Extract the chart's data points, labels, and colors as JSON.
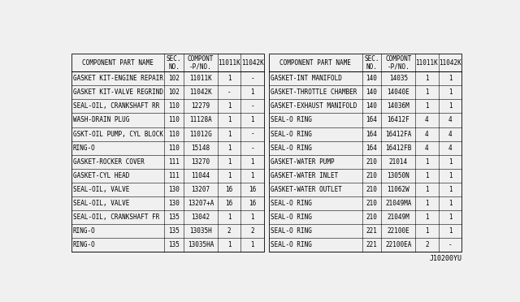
{
  "watermark": "J10200YU",
  "bg_color": "#f0f0f0",
  "left_headers": [
    "COMPONENT PART NAME",
    "SEC.\nNO.",
    "COMPONT\n-P/NO.",
    "11011K",
    "11042K"
  ],
  "right_headers": [
    "COMPONENT PART NAME",
    "SEC.\nNO.",
    "COMPONT\n-P/NO.",
    "11011K",
    "11042K"
  ],
  "left_rows": [
    [
      "GASKET KIT-ENGINE REPAIR",
      "102",
      "11011K",
      "1",
      "-"
    ],
    [
      "GASKET KIT-VALVE REGRIND",
      "102",
      "11042K",
      "-",
      "1"
    ],
    [
      "SEAL-OIL, CRANKSHAFT RR",
      "110",
      "12279",
      "1",
      "-"
    ],
    [
      "WASH-DRAIN PLUG",
      "110",
      "11128A",
      "1",
      "1"
    ],
    [
      "GSKT-OIL PUMP, CYL BLOCK",
      "110",
      "11012G",
      "1",
      "-"
    ],
    [
      "RING-O",
      "110",
      "15148",
      "1",
      "-"
    ],
    [
      "GASKET-ROCKER COVER",
      "111",
      "13270",
      "1",
      "1"
    ],
    [
      "GASKET-CYL HEAD",
      "111",
      "11044",
      "1",
      "1"
    ],
    [
      "SEAL-OIL, VALVE",
      "130",
      "13207",
      "16",
      "16"
    ],
    [
      "SEAL-OIL, VALVE",
      "130",
      "13207+A",
      "16",
      "16"
    ],
    [
      "SEAL-OIL, CRANKSHAFT FR",
      "135",
      "13042",
      "1",
      "1"
    ],
    [
      "RING-O",
      "135",
      "13035H",
      "2",
      "2"
    ],
    [
      "RING-O",
      "135",
      "13035HA",
      "1",
      "1"
    ]
  ],
  "right_rows": [
    [
      "GASKET-INT MANIFOLD",
      "140",
      "14035",
      "1",
      "1"
    ],
    [
      "GASKET-THROTTLE CHAMBER",
      "140",
      "14040E",
      "1",
      "1"
    ],
    [
      "GASKET-EXHAUST MANIFOLD",
      "140",
      "14036M",
      "1",
      "1"
    ],
    [
      "SEAL-O RING",
      "164",
      "16412F",
      "4",
      "4"
    ],
    [
      "SEAL-O RING",
      "164",
      "16412FA",
      "4",
      "4"
    ],
    [
      "SEAL-O RING",
      "164",
      "16412FB",
      "4",
      "4"
    ],
    [
      "GASKET-WATER PUMP",
      "210",
      "21014",
      "1",
      "1"
    ],
    [
      "GASKET-WATER INLET",
      "210",
      "13050N",
      "1",
      "1"
    ],
    [
      "GASKET-WATER OUTLET",
      "210",
      "11062W",
      "1",
      "1"
    ],
    [
      "SEAL-O RING",
      "210",
      "21049MA",
      "1",
      "1"
    ],
    [
      "SEAL-O RING",
      "210",
      "21049M",
      "1",
      "1"
    ],
    [
      "SEAL-O RING",
      "221",
      "22100E",
      "1",
      "1"
    ],
    [
      "SEAL-O RING",
      "221",
      "22100EA",
      "2",
      "-"
    ]
  ],
  "font_size": 5.5,
  "header_font_size": 5.5
}
